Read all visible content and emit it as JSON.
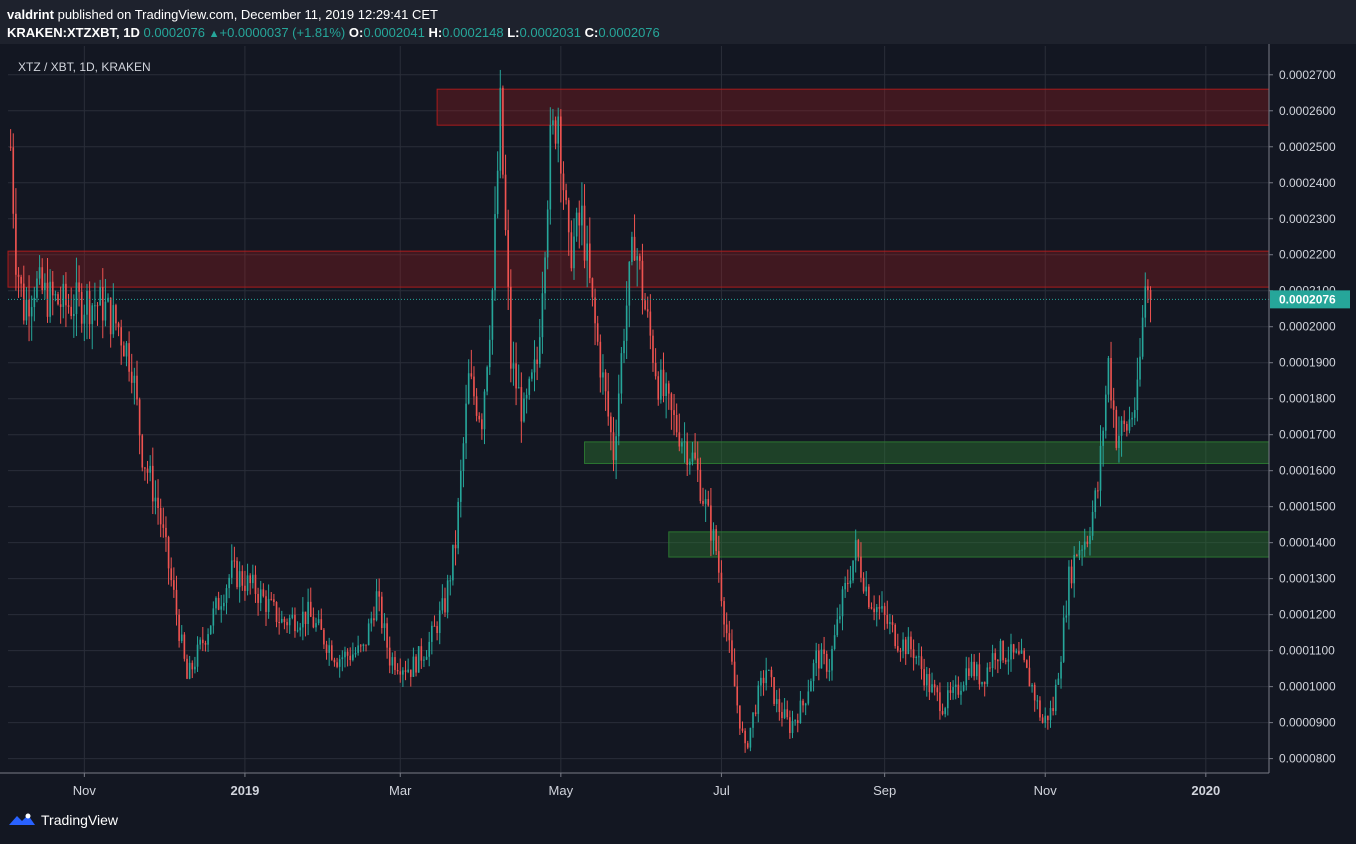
{
  "header": {
    "publisher": "valdrint",
    "published_text": "published on TradingView.com, December 11, 2019 12:29:41 CET",
    "symbol_line": "KRAKEN:XTZXBT, 1D",
    "last": "0.0002076",
    "change": "+0.0000037 (+1.81%)",
    "o_label": "O:",
    "o_value": "0.0002041",
    "h_label": "H:",
    "h_value": "0.0002148",
    "l_label": "L:",
    "l_value": "0.0002031",
    "c_label": "C:",
    "c_value": "0.0002076"
  },
  "legend": "XTZ / XBT, 1D, KRAKEN",
  "footer": {
    "brand": "TradingView"
  },
  "colors": {
    "background": "#131722",
    "up": "#26a69a",
    "down": "#ef5350",
    "resistance_zone": "#b71c1c",
    "support_zone": "#2e7d32",
    "price_label_bg": "#26a69a"
  },
  "chart_data": {
    "type": "candlestick",
    "title": "XTZ / XBT, 1D, KRAKEN",
    "xlabel": "",
    "ylabel": "",
    "grid": true,
    "x_ticks": [
      {
        "label": "Nov",
        "date": "2018-11-01"
      },
      {
        "label": "2019",
        "date": "2019-01-01",
        "bold": true
      },
      {
        "label": "Mar",
        "date": "2019-03-01"
      },
      {
        "label": "May",
        "date": "2019-05-01"
      },
      {
        "label": "Jul",
        "date": "2019-07-01"
      },
      {
        "label": "Sep",
        "date": "2019-09-01"
      },
      {
        "label": "Nov",
        "date": "2019-11-01"
      },
      {
        "label": "2020",
        "date": "2020-01-01",
        "bold": true
      }
    ],
    "y_ticks": [
      "0.0000800",
      "0.0000900",
      "0.0001000",
      "0.0001100",
      "0.0001200",
      "0.0001300",
      "0.0001400",
      "0.0001500",
      "0.0001600",
      "0.0001700",
      "0.0001800",
      "0.0001900",
      "0.0002000",
      "0.0002100",
      "0.0002200",
      "0.0002300",
      "0.0002400",
      "0.0002500",
      "0.0002600",
      "0.0002700"
    ],
    "ylim": [
      7.6e-05,
      0.000278
    ],
    "xlim": [
      "2018-10-03",
      "2020-01-25"
    ],
    "last_price": 0.0002076,
    "last_price_label": "0.0002076",
    "zones": [
      {
        "kind": "resistance",
        "x_start": "2019-03-15",
        "x_end": "2020-01-25",
        "y_low": 0.000256,
        "y_high": 0.000266
      },
      {
        "kind": "resistance",
        "x_start": "2018-10-03",
        "x_end": "2020-01-25",
        "y_low": 0.000211,
        "y_high": 0.000221
      },
      {
        "kind": "support",
        "x_start": "2019-05-10",
        "x_end": "2020-01-25",
        "y_low": 0.000162,
        "y_high": 0.000168
      },
      {
        "kind": "support",
        "x_start": "2019-06-11",
        "x_end": "2020-01-25",
        "y_low": 0.000136,
        "y_high": 0.000143
      }
    ],
    "close_path": [
      {
        "date": "2018-10-04",
        "close": 0.00025
      },
      {
        "date": "2018-10-06",
        "close": 0.00022
      },
      {
        "date": "2018-10-09",
        "close": 0.000205
      },
      {
        "date": "2018-10-13",
        "close": 0.000212
      },
      {
        "date": "2018-10-18",
        "close": 0.000208
      },
      {
        "date": "2018-10-25",
        "close": 0.000206
      },
      {
        "date": "2018-11-02",
        "close": 0.000207
      },
      {
        "date": "2018-11-08",
        "close": 0.000206
      },
      {
        "date": "2018-11-14",
        "close": 0.0002
      },
      {
        "date": "2018-11-19",
        "close": 0.00019
      },
      {
        "date": "2018-11-23",
        "close": 0.000165
      },
      {
        "date": "2018-11-29",
        "close": 0.00015
      },
      {
        "date": "2018-12-05",
        "close": 0.000125
      },
      {
        "date": "2018-12-10",
        "close": 0.000102
      },
      {
        "date": "2018-12-14",
        "close": 0.000109
      },
      {
        "date": "2018-12-20",
        "close": 0.00012
      },
      {
        "date": "2018-12-27",
        "close": 0.000132
      },
      {
        "date": "2019-01-05",
        "close": 0.000127
      },
      {
        "date": "2019-01-15",
        "close": 0.000118
      },
      {
        "date": "2019-01-25",
        "close": 0.00012
      },
      {
        "date": "2019-02-05",
        "close": 0.000108
      },
      {
        "date": "2019-02-15",
        "close": 0.00011
      },
      {
        "date": "2019-02-20",
        "close": 0.000125
      },
      {
        "date": "2019-02-25",
        "close": 0.000108
      },
      {
        "date": "2019-03-05",
        "close": 0.000105
      },
      {
        "date": "2019-03-12",
        "close": 0.000112
      },
      {
        "date": "2019-03-18",
        "close": 0.000123
      },
      {
        "date": "2019-03-22",
        "close": 0.00014
      },
      {
        "date": "2019-03-27",
        "close": 0.000185
      },
      {
        "date": "2019-04-01",
        "close": 0.000175
      },
      {
        "date": "2019-04-05",
        "close": 0.00021
      },
      {
        "date": "2019-04-08",
        "close": 0.00026
      },
      {
        "date": "2019-04-12",
        "close": 0.00019
      },
      {
        "date": "2019-04-17",
        "close": 0.000175
      },
      {
        "date": "2019-04-22",
        "close": 0.00019
      },
      {
        "date": "2019-04-27",
        "close": 0.00025
      },
      {
        "date": "2019-04-30",
        "close": 0.00026
      },
      {
        "date": "2019-05-04",
        "close": 0.00022
      },
      {
        "date": "2019-05-09",
        "close": 0.00023
      },
      {
        "date": "2019-05-13",
        "close": 0.000205
      },
      {
        "date": "2019-05-18",
        "close": 0.00018
      },
      {
        "date": "2019-05-21",
        "close": 0.000165
      },
      {
        "date": "2019-05-25",
        "close": 0.0002
      },
      {
        "date": "2019-05-29",
        "close": 0.000225
      },
      {
        "date": "2019-06-02",
        "close": 0.000205
      },
      {
        "date": "2019-06-07",
        "close": 0.000185
      },
      {
        "date": "2019-06-12",
        "close": 0.000175
      },
      {
        "date": "2019-06-17",
        "close": 0.000168
      },
      {
        "date": "2019-06-21",
        "close": 0.000162
      },
      {
        "date": "2019-06-25",
        "close": 0.00015
      },
      {
        "date": "2019-06-29",
        "close": 0.000138
      },
      {
        "date": "2019-07-03",
        "close": 0.000115
      },
      {
        "date": "2019-07-07",
        "close": 9.5e-05
      },
      {
        "date": "2019-07-10",
        "close": 8.2e-05
      },
      {
        "date": "2019-07-14",
        "close": 9.5e-05
      },
      {
        "date": "2019-07-18",
        "close": 0.000105
      },
      {
        "date": "2019-07-22",
        "close": 9.5e-05
      },
      {
        "date": "2019-07-27",
        "close": 8.9e-05
      },
      {
        "date": "2019-08-01",
        "close": 9.5e-05
      },
      {
        "date": "2019-08-06",
        "close": 0.000108
      },
      {
        "date": "2019-08-11",
        "close": 0.000106
      },
      {
        "date": "2019-08-16",
        "close": 0.000124
      },
      {
        "date": "2019-08-21",
        "close": 0.000138
      },
      {
        "date": "2019-08-26",
        "close": 0.000125
      },
      {
        "date": "2019-08-31",
        "close": 0.00012
      },
      {
        "date": "2019-09-06",
        "close": 0.000113
      },
      {
        "date": "2019-09-12",
        "close": 0.00011
      },
      {
        "date": "2019-09-18",
        "close": 0.0001
      },
      {
        "date": "2019-09-23",
        "close": 9.5e-05
      },
      {
        "date": "2019-09-28",
        "close": 9.8e-05
      },
      {
        "date": "2019-10-03",
        "close": 0.000106
      },
      {
        "date": "2019-10-08",
        "close": 0.000102
      },
      {
        "date": "2019-10-13",
        "close": 0.00011
      },
      {
        "date": "2019-10-18",
        "close": 0.000109
      },
      {
        "date": "2019-10-23",
        "close": 0.000107
      },
      {
        "date": "2019-10-27",
        "close": 0.0001
      },
      {
        "date": "2019-10-31",
        "close": 9e-05
      },
      {
        "date": "2019-11-04",
        "close": 9.4e-05
      },
      {
        "date": "2019-11-07",
        "close": 0.00011
      },
      {
        "date": "2019-11-10",
        "close": 0.00013
      },
      {
        "date": "2019-11-13",
        "close": 0.000138
      },
      {
        "date": "2019-11-17",
        "close": 0.000142
      },
      {
        "date": "2019-11-21",
        "close": 0.000155
      },
      {
        "date": "2019-11-25",
        "close": 0.00019
      },
      {
        "date": "2019-11-28",
        "close": 0.00017
      },
      {
        "date": "2019-12-02",
        "close": 0.000172
      },
      {
        "date": "2019-12-06",
        "close": 0.00018
      },
      {
        "date": "2019-12-09",
        "close": 0.000212
      },
      {
        "date": "2019-12-11",
        "close": 0.0002076
      }
    ]
  }
}
